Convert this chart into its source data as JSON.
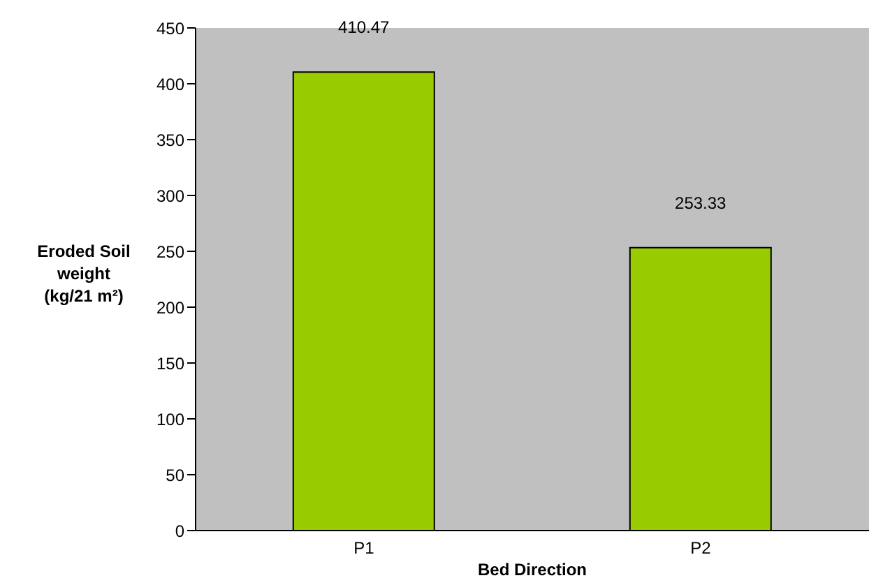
{
  "chart_data": {
    "type": "bar",
    "xlabel": "Bed Direction",
    "ylabel": "Eroded Soil weight (kg/21 m²)",
    "categories": [
      "P1",
      "P2"
    ],
    "values": [
      410.47,
      253.33
    ],
    "color": "#99cc00",
    "ylim": [
      0,
      450
    ],
    "yticks": [
      0,
      50,
      100,
      150,
      200,
      250,
      300,
      350,
      400,
      450
    ],
    "data_labels": true,
    "grid": false
  }
}
